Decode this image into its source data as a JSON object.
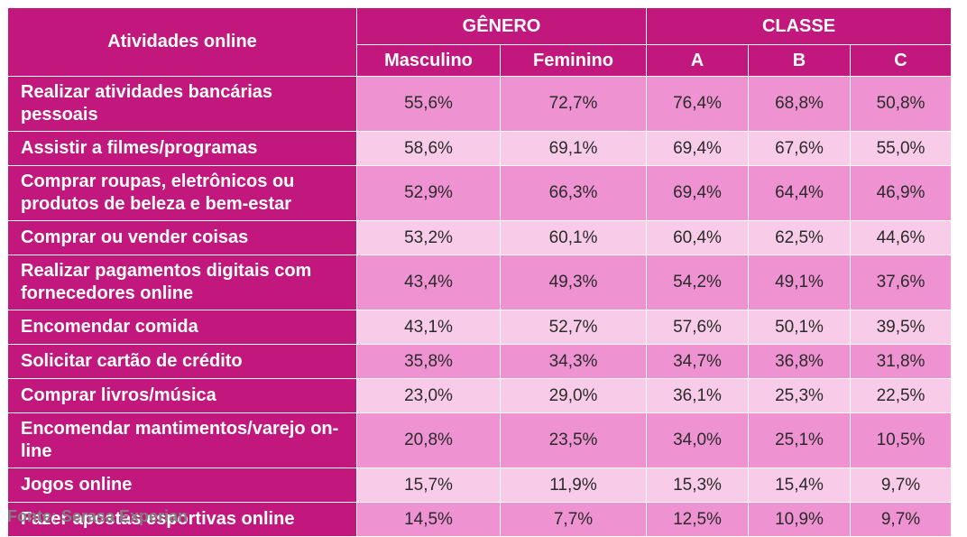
{
  "chart_data": {
    "type": "table",
    "header": {
      "row_label": "Atividades online",
      "groups": [
        {
          "name": "GÊNERO",
          "columns": [
            "Masculino",
            "Feminino"
          ]
        },
        {
          "name": "CLASSE",
          "columns": [
            "A",
            "B",
            "C"
          ]
        }
      ]
    },
    "rows": [
      {
        "label": "Realizar atividades bancárias pessoais",
        "values": [
          "55,6%",
          "72,7%",
          "76,4%",
          "68,8%",
          "50,8%"
        ]
      },
      {
        "label": "Assistir a filmes/programas",
        "values": [
          "58,6%",
          "69,1%",
          "69,4%",
          "67,6%",
          "55,0%"
        ]
      },
      {
        "label": "Comprar roupas, eletrônicos ou produtos de beleza e bem-estar",
        "values": [
          "52,9%",
          "66,3%",
          "69,4%",
          "64,4%",
          "46,9%"
        ]
      },
      {
        "label": "Comprar ou vender coisas",
        "values": [
          "53,2%",
          "60,1%",
          "60,4%",
          "62,5%",
          "44,6%"
        ]
      },
      {
        "label": "Realizar pagamentos digitais com fornecedores online",
        "values": [
          "43,4%",
          "49,3%",
          "54,2%",
          "49,1%",
          "37,6%"
        ]
      },
      {
        "label": "Encomendar comida",
        "values": [
          "43,1%",
          "52,7%",
          "57,6%",
          "50,1%",
          "39,5%"
        ]
      },
      {
        "label": "Solicitar cartão de crédito",
        "values": [
          "35,8%",
          "34,3%",
          "34,7%",
          "36,8%",
          "31,8%"
        ]
      },
      {
        "label": "Comprar livros/música",
        "values": [
          "23,0%",
          "29,0%",
          "36,1%",
          "25,3%",
          "22,5%"
        ]
      },
      {
        "label": "Encomendar mantimentos/varejo on-line",
        "values": [
          "20,8%",
          "23,5%",
          "34,0%",
          "25,1%",
          "10,5%"
        ]
      },
      {
        "label": "Jogos online",
        "values": [
          "15,7%",
          "11,9%",
          "15,3%",
          "15,4%",
          "9,7%"
        ]
      },
      {
        "label": "Fazer apostas esportivas online",
        "values": [
          "14,5%",
          "7,7%",
          "12,5%",
          "10,9%",
          "9,7%"
        ]
      }
    ],
    "source": "Fonte: Serasa Experian"
  },
  "colors": {
    "header": "#c2187e",
    "row_dark": "#ee92d1",
    "row_light": "#f8cce8",
    "source_text": "#808080"
  }
}
